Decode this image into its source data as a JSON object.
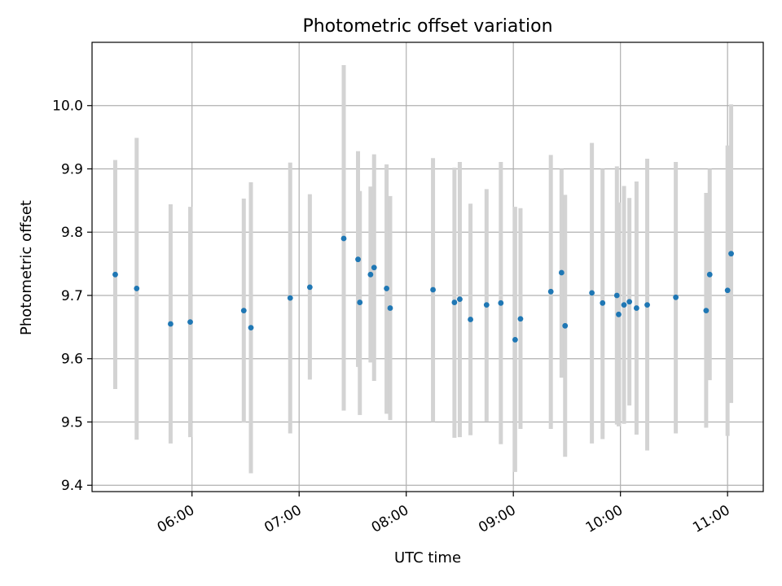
{
  "chart_data": {
    "type": "scatter",
    "title": "Photometric offset variation",
    "xlabel": "UTC time",
    "ylabel": "Photometric offset",
    "x_unit": "UTC time (HH:MM)",
    "xlim": [
      "05:04",
      "11:20"
    ],
    "ylim": [
      9.39,
      10.1
    ],
    "xticks": [
      "06:00",
      "07:00",
      "08:00",
      "09:00",
      "10:00",
      "11:00"
    ],
    "yticks": [
      9.4,
      9.5,
      9.6,
      9.7,
      9.8,
      9.9,
      10.0
    ],
    "grid": true,
    "legend": "none",
    "point_color": "#1f77b4",
    "errorbar_color": "#d3d3d3",
    "points": [
      {
        "x": "05:17",
        "y": 9.733,
        "lo": 9.552,
        "hi": 9.914
      },
      {
        "x": "05:29",
        "y": 9.711,
        "lo": 9.472,
        "hi": 9.949
      },
      {
        "x": "05:48",
        "y": 9.655,
        "lo": 9.466,
        "hi": 9.844
      },
      {
        "x": "05:59",
        "y": 9.658,
        "lo": 9.476,
        "hi": 9.84
      },
      {
        "x": "06:29",
        "y": 9.676,
        "lo": 9.499,
        "hi": 9.853
      },
      {
        "x": "06:33",
        "y": 9.649,
        "lo": 9.419,
        "hi": 9.879
      },
      {
        "x": "06:55",
        "y": 9.696,
        "lo": 9.482,
        "hi": 9.91
      },
      {
        "x": "07:06",
        "y": 9.713,
        "lo": 9.567,
        "hi": 9.86
      },
      {
        "x": "07:25",
        "y": 9.79,
        "lo": 9.518,
        "hi": 10.064
      },
      {
        "x": "07:33",
        "y": 9.757,
        "lo": 9.587,
        "hi": 9.928
      },
      {
        "x": "07:34",
        "y": 9.689,
        "lo": 9.511,
        "hi": 9.865
      },
      {
        "x": "07:40",
        "y": 9.733,
        "lo": 9.594,
        "hi": 9.872
      },
      {
        "x": "07:42",
        "y": 9.744,
        "lo": 9.565,
        "hi": 9.923
      },
      {
        "x": "07:49",
        "y": 9.711,
        "lo": 9.513,
        "hi": 9.907
      },
      {
        "x": "07:51",
        "y": 9.68,
        "lo": 9.503,
        "hi": 9.857
      },
      {
        "x": "08:15",
        "y": 9.709,
        "lo": 9.5,
        "hi": 9.917
      },
      {
        "x": "08:27",
        "y": 9.689,
        "lo": 9.475,
        "hi": 9.902
      },
      {
        "x": "08:30",
        "y": 9.694,
        "lo": 9.476,
        "hi": 9.911
      },
      {
        "x": "08:36",
        "y": 9.662,
        "lo": 9.479,
        "hi": 9.845
      },
      {
        "x": "08:45",
        "y": 9.685,
        "lo": 9.501,
        "hi": 9.868
      },
      {
        "x": "08:53",
        "y": 9.688,
        "lo": 9.465,
        "hi": 9.911
      },
      {
        "x": "09:01",
        "y": 9.63,
        "lo": 9.421,
        "hi": 9.84
      },
      {
        "x": "09:04",
        "y": 9.663,
        "lo": 9.489,
        "hi": 9.838
      },
      {
        "x": "09:21",
        "y": 9.706,
        "lo": 9.489,
        "hi": 9.922
      },
      {
        "x": "09:27",
        "y": 9.736,
        "lo": 9.57,
        "hi": 9.9
      },
      {
        "x": "09:29",
        "y": 9.652,
        "lo": 9.445,
        "hi": 9.859
      },
      {
        "x": "09:44",
        "y": 9.704,
        "lo": 9.466,
        "hi": 9.941
      },
      {
        "x": "09:50",
        "y": 9.688,
        "lo": 9.473,
        "hi": 9.9
      },
      {
        "x": "09:58",
        "y": 9.7,
        "lo": 9.496,
        "hi": 9.904
      },
      {
        "x": "09:59",
        "y": 9.67,
        "lo": 9.493,
        "hi": 9.847
      },
      {
        "x": "10:02",
        "y": 9.685,
        "lo": 9.497,
        "hi": 9.873
      },
      {
        "x": "10:05",
        "y": 9.69,
        "lo": 9.526,
        "hi": 9.854
      },
      {
        "x": "10:09",
        "y": 9.68,
        "lo": 9.48,
        "hi": 9.88
      },
      {
        "x": "10:15",
        "y": 9.685,
        "lo": 9.455,
        "hi": 9.916
      },
      {
        "x": "10:31",
        "y": 9.697,
        "lo": 9.482,
        "hi": 9.911
      },
      {
        "x": "10:48",
        "y": 9.676,
        "lo": 9.491,
        "hi": 9.862
      },
      {
        "x": "10:50",
        "y": 9.733,
        "lo": 9.566,
        "hi": 9.9
      },
      {
        "x": "11:00",
        "y": 9.708,
        "lo": 9.478,
        "hi": 9.937
      },
      {
        "x": "11:02",
        "y": 9.766,
        "lo": 9.53,
        "hi": 10.002
      }
    ]
  }
}
